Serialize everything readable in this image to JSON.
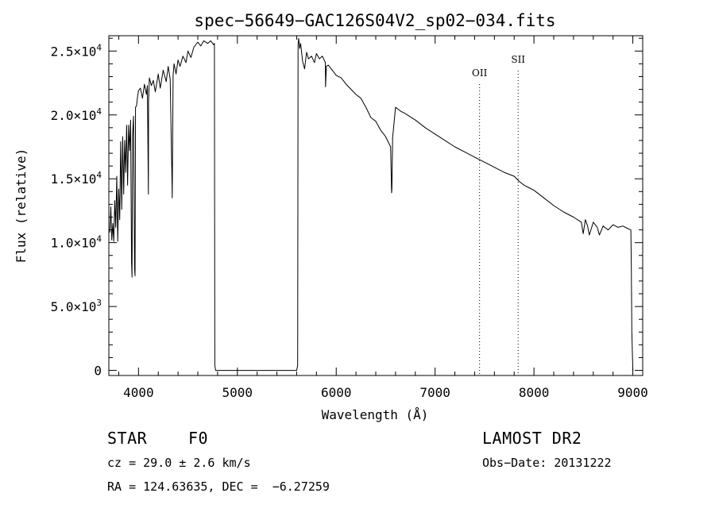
{
  "chart_data": {
    "type": "line",
    "title": "spec−56649−GAC126S04V2_sp02−034.fits",
    "xlabel": "Wavelength (Å)",
    "ylabel": "Flux (relative)",
    "xlim": [
      3700,
      9100
    ],
    "ylim": [
      -400,
      26200
    ],
    "x_ticks": [
      4000,
      5000,
      6000,
      7000,
      8000,
      9000
    ],
    "x_tick_labels": [
      "4000",
      "5000",
      "6000",
      "7000",
      "8000",
      "9000"
    ],
    "y_ticks": [
      0,
      5000,
      10000,
      15000,
      20000,
      25000
    ],
    "y_tick_labels": [
      {
        "mantissa": "0",
        "exp": ""
      },
      {
        "mantissa": "5.0×10",
        "exp": "3"
      },
      {
        "mantissa": "1.0×10",
        "exp": "4"
      },
      {
        "mantissa": "1.5×10",
        "exp": "4"
      },
      {
        "mantissa": "2.0×10",
        "exp": "4"
      },
      {
        "mantissa": "2.5×10",
        "exp": "4"
      }
    ],
    "grid": false,
    "annotations": [
      {
        "label": "OII",
        "x": 7450
      },
      {
        "label": "SII",
        "x": 7840
      }
    ],
    "series": [
      {
        "x": [
          3710,
          3720,
          3730,
          3740,
          3750,
          3760,
          3770,
          3780,
          3790,
          3800,
          3810,
          3820,
          3830,
          3840,
          3850,
          3860,
          3870,
          3880,
          3890,
          3900,
          3910,
          3920,
          3930,
          3935,
          3940,
          3950,
          3960,
          3965,
          3970,
          3980,
          3990,
          4000,
          4020,
          4040,
          4060,
          4080,
          4090,
          4100,
          4102,
          4110,
          4130,
          4150,
          4170,
          4200,
          4220,
          4250,
          4280,
          4300,
          4320,
          4340,
          4341,
          4350,
          4360,
          4380,
          4400,
          4420,
          4450,
          4480,
          4500,
          4530,
          4560,
          4600,
          4630,
          4660,
          4700,
          4730,
          4760,
          4768,
          4772,
          4780,
          4790,
          5600,
          5610,
          5614,
          5620,
          5630,
          5640,
          5660,
          5680,
          5700,
          5720,
          5750,
          5780,
          5800,
          5830,
          5860,
          5890,
          5892,
          5900,
          5920,
          5950,
          6000,
          6050,
          6100,
          6150,
          6200,
          6250,
          6300,
          6350,
          6400,
          6450,
          6500,
          6550,
          6560,
          6563,
          6570,
          6600,
          6650,
          6700,
          6800,
          6900,
          7000,
          7100,
          7200,
          7300,
          7400,
          7500,
          7600,
          7700,
          7800,
          7850,
          7900,
          7950,
          8000,
          8100,
          8200,
          8300,
          8400,
          8480,
          8498,
          8520,
          8542,
          8560,
          8600,
          8640,
          8662,
          8700,
          8750,
          8800,
          8850,
          8900,
          8950,
          8980,
          8985,
          8990,
          9000
        ],
        "y": [
          10800,
          12800,
          10200,
          11500,
          10100,
          13300,
          11200,
          15200,
          10100,
          14200,
          11800,
          17900,
          12600,
          18300,
          13800,
          18000,
          15500,
          19200,
          14500,
          19200,
          17200,
          19600,
          8500,
          7300,
          18400,
          19900,
          8000,
          7400,
          20600,
          20700,
          21400,
          21900,
          22100,
          21300,
          22400,
          21600,
          22300,
          13800,
          21000,
          22900,
          22300,
          22700,
          21800,
          23200,
          22100,
          23500,
          22600,
          23800,
          22800,
          14500,
          13500,
          23100,
          24000,
          23200,
          24300,
          23800,
          24600,
          24100,
          25000,
          24500,
          25300,
          25700,
          25400,
          25800,
          25600,
          25800,
          25500,
          25600,
          400,
          0,
          0,
          0,
          400,
          25500,
          26000,
          25200,
          25600,
          24200,
          23600,
          24900,
          24400,
          24600,
          24100,
          24800,
          24400,
          24600,
          24100,
          22200,
          23800,
          23900,
          23600,
          23100,
          22900,
          22400,
          22000,
          21600,
          21300,
          20600,
          19800,
          19500,
          18800,
          18300,
          17500,
          13900,
          14200,
          18200,
          20600,
          20300,
          20100,
          19600,
          19000,
          18500,
          18000,
          17500,
          17100,
          16700,
          16300,
          15900,
          15500,
          15200,
          14800,
          14500,
          14300,
          14100,
          13500,
          12900,
          12400,
          12000,
          11600,
          10700,
          11800,
          11300,
          10600,
          11600,
          11200,
          10600,
          11300,
          11000,
          11400,
          11200,
          11300,
          11100,
          11000,
          8000,
          3000,
          0
        ]
      }
    ]
  },
  "info": {
    "object_class": "STAR",
    "subclass": "F0",
    "redshift_line": "cz = 29.0 ± 2.6 km/s",
    "coords_line": "RA = 124.63635, DEC =  −6.27259",
    "survey": "LAMOST DR2",
    "obs_date": "Obs−Date: 20131222"
  }
}
